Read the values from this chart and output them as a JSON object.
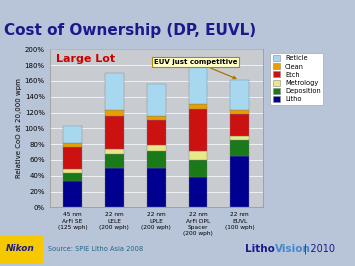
{
  "title": "Cost of Ownership (DP, EUVL)",
  "title_color": "#1a1a8c",
  "title_bg": "#dde4f0",
  "top_bar_color": "#1a1a66",
  "subtitle": "Large Lot",
  "subtitle_color": "#cc0000",
  "annotation": "EUV just competitive",
  "ylabel": "Relative CoO at 20,000 wpm",
  "source": "Source: SPIE Litho Asia 2008",
  "ylim": [
    0,
    200
  ],
  "yticks": [
    0,
    20,
    40,
    60,
    80,
    100,
    120,
    140,
    160,
    180,
    200
  ],
  "categories": [
    "45 nm\nArFi SE\n(125 wph)",
    "22 nm\nLELE\n(200 wph)",
    "22 nm\nLPLE\n(200 wph)",
    "22 nm\nArFi DPL\nSpacer\n(200 wph)",
    "22 nm\nEUVL\n(100 wph)"
  ],
  "segment_order": [
    "Litho",
    "Deposition",
    "Metrology",
    "Etch",
    "Clean",
    "Reticle"
  ],
  "legend_order": [
    "Reticle",
    "Clean",
    "Etch",
    "Metrology",
    "Deposition",
    "Litho"
  ],
  "colors": {
    "Litho": "#000090",
    "Deposition": "#1a7a1a",
    "Metrology": "#e8e888",
    "Etch": "#cc1111",
    "Clean": "#e8a000",
    "Reticle": "#a8d8f0"
  },
  "values": {
    "Litho": [
      33,
      50,
      50,
      38,
      65
    ],
    "Deposition": [
      11,
      17,
      22,
      22,
      20
    ],
    "Metrology": [
      4,
      7,
      7,
      12,
      5
    ],
    "Etch": [
      28,
      42,
      32,
      52,
      28
    ],
    "Clean": [
      5,
      7,
      5,
      7,
      5
    ],
    "Reticle": [
      22,
      47,
      40,
      55,
      38
    ]
  },
  "outer_bg": "#b8c4d8",
  "inner_bg": "#c8ccd8",
  "plot_bg": "#c8ccd0",
  "grid_color": "#b0b0b8",
  "bar_width": 0.45,
  "nikon_bg": "#f5c800",
  "nikon_color": "#1a1a8c",
  "litho_color": "#1a1a8c",
  "vision_color": "#4488cc",
  "year_color": "#1a1a8c"
}
